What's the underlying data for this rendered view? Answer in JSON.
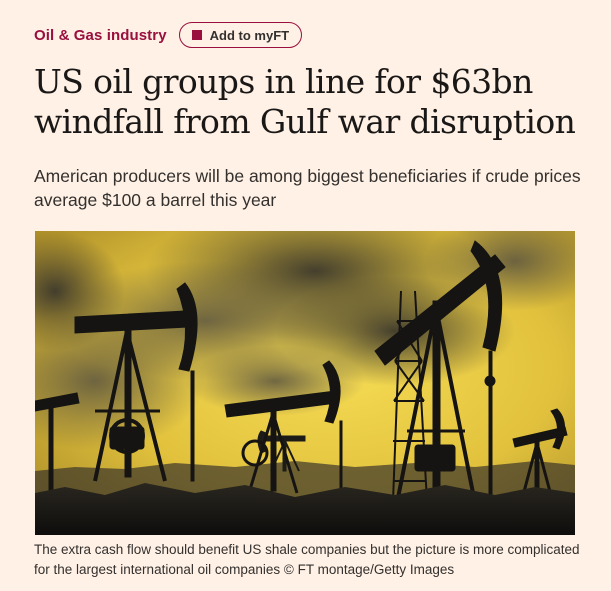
{
  "topic": {
    "label": "Oil & Gas industry"
  },
  "myft": {
    "label": "Add to myFT"
  },
  "article": {
    "headline": "US oil groups in line for $63bn windfall from Gulf war disruption",
    "standfirst": "American producers will be among biggest beneficiaries if crude prices average $100 a barrel this year",
    "caption": "The extra cash flow should benefit US shale companies but the picture is more complicated for the largest international oil companies © FT montage/Getty Images"
  },
  "image": {
    "subject": "oil pump jacks against smoky yellow sky",
    "palette": {
      "sky_light": "#f2d64a",
      "sky_dark": "#b89a2a",
      "smoke": "#4a4536",
      "silhouette": "#141312"
    }
  },
  "colors": {
    "background": "#fff1e5",
    "accent": "#990f3d",
    "text": "#33302e"
  }
}
